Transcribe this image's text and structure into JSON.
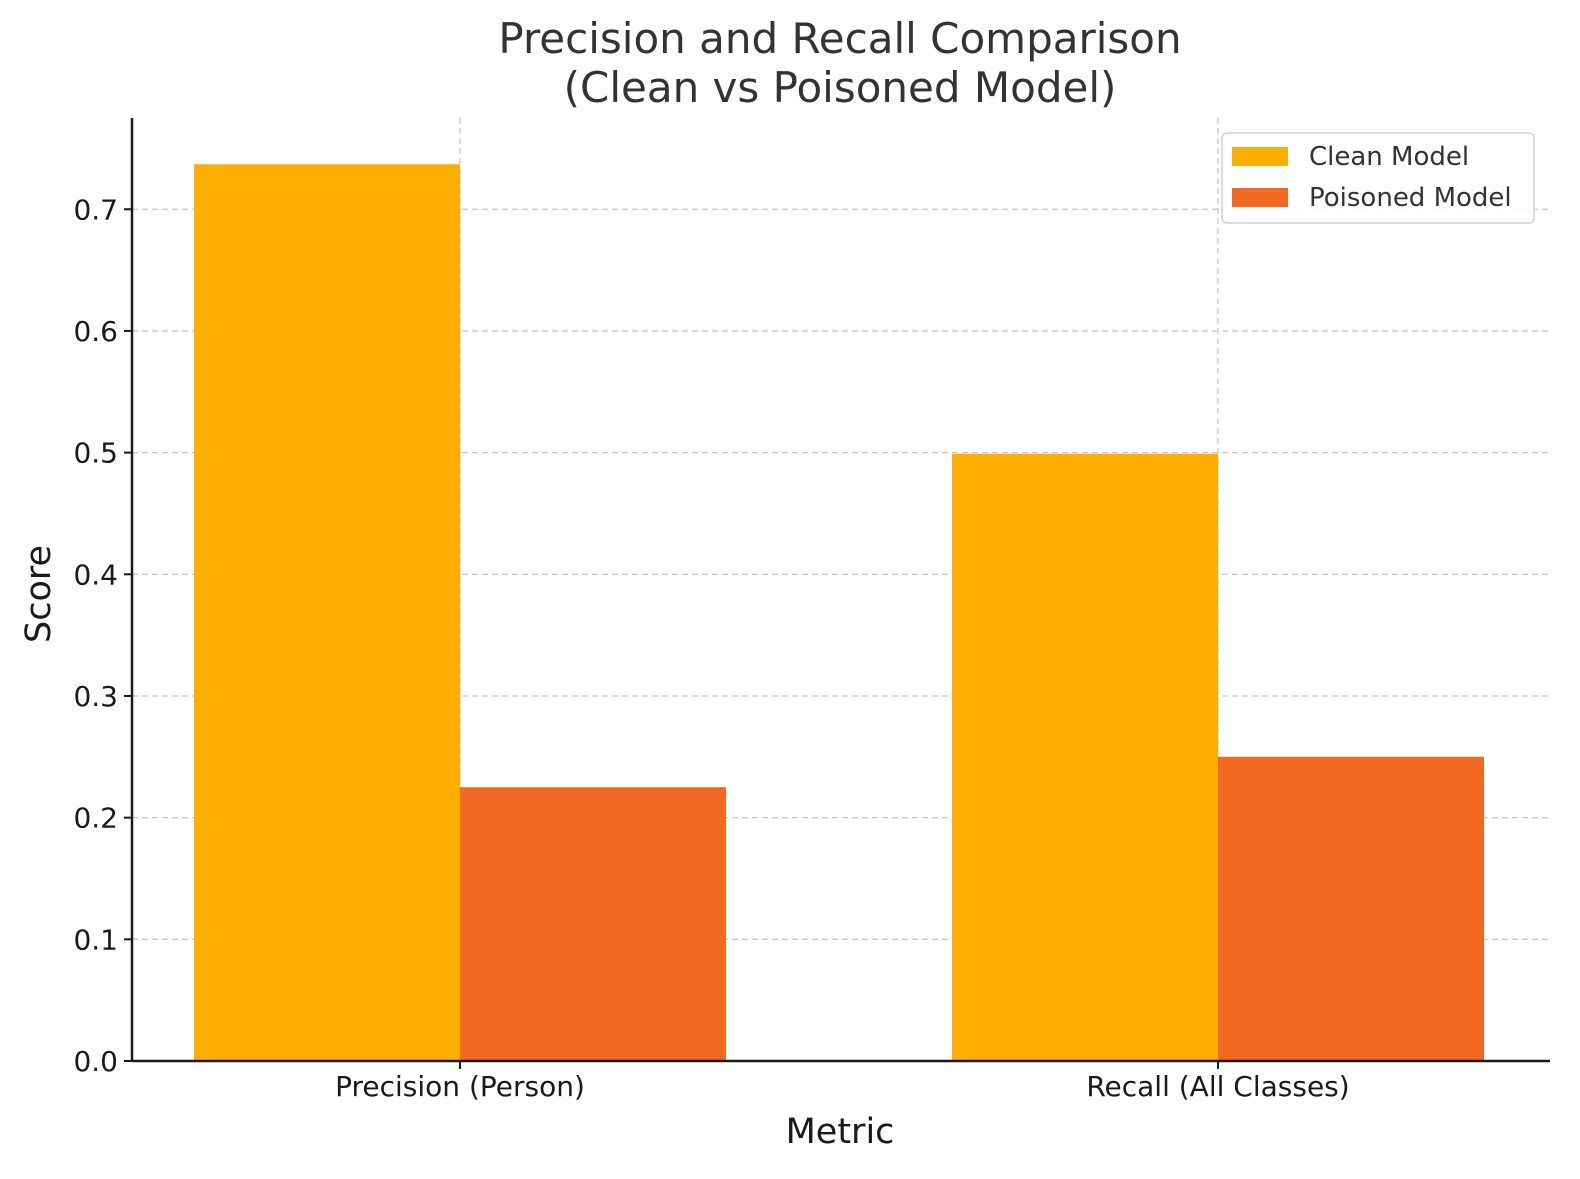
{
  "chart_data": {
    "type": "bar",
    "title": "Precision and Recall Comparison",
    "subtitle": "(Clean vs Poisoned Model)",
    "xlabel": "Metric",
    "ylabel": "Score",
    "categories": [
      "Precision (Person)",
      "Recall (All Classes)"
    ],
    "series": [
      {
        "name": "Clean Model",
        "values": [
          0.737,
          0.499
        ],
        "color": "#FFAE03"
      },
      {
        "name": "Poisoned Model",
        "values": [
          0.225,
          0.25
        ],
        "color": "#F26A22"
      }
    ],
    "ylim": [
      0,
      0.775
    ],
    "yticks": [
      "0.0",
      "0.1",
      "0.2",
      "0.3",
      "0.4",
      "0.5",
      "0.6",
      "0.7"
    ],
    "grid": true,
    "legend_position": "top-right"
  }
}
